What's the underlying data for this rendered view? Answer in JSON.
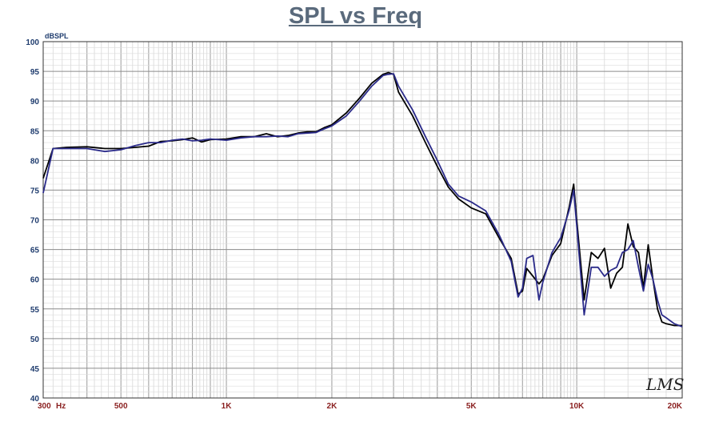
{
  "chart_data": {
    "type": "line",
    "title": "SPL vs Freq",
    "ylabel": "dBSPL",
    "xlabel": "",
    "xscale": "log",
    "xlim": [
      300,
      20000
    ],
    "ylim": [
      40,
      100
    ],
    "grid": true,
    "y_ticks": [
      40,
      45,
      50,
      55,
      60,
      65,
      70,
      75,
      80,
      85,
      90,
      95,
      100
    ],
    "x_ticks": [
      {
        "value": 300,
        "label": "300"
      },
      {
        "value": 500,
        "label": "500"
      },
      {
        "value": 1000,
        "label": "1K"
      },
      {
        "value": 2000,
        "label": "2K"
      },
      {
        "value": 5000,
        "label": "5K"
      },
      {
        "value": 10000,
        "label": "10K"
      },
      {
        "value": 20000,
        "label": "20K"
      }
    ],
    "x_unit_label": "Hz",
    "watermark": "LMS",
    "series": [
      {
        "color": "#000000",
        "x": [
          300,
          320,
          350,
          400,
          450,
          500,
          550,
          600,
          650,
          700,
          750,
          800,
          850,
          900,
          1000,
          1100,
          1200,
          1300,
          1400,
          1500,
          1600,
          1700,
          1800,
          1900,
          2000,
          2200,
          2400,
          2600,
          2800,
          2900,
          3000,
          3100,
          3400,
          3700,
          4000,
          4300,
          4600,
          5000,
          5500,
          6000,
          6500,
          6800,
          7000,
          7200,
          7500,
          7800,
          8000,
          8500,
          9000,
          9500,
          9800,
          10000,
          10500,
          11000,
          11500,
          12000,
          12500,
          13000,
          13500,
          14000,
          14500,
          15000,
          15500,
          16000,
          16500,
          17000,
          17500,
          18000,
          19000,
          20000
        ],
        "y": [
          77.0,
          82.0,
          82.2,
          82.3,
          82.0,
          82.0,
          82.2,
          82.4,
          83.2,
          83.3,
          83.5,
          83.8,
          83.1,
          83.5,
          83.6,
          84.0,
          84.0,
          84.5,
          84.0,
          84.2,
          84.6,
          84.8,
          84.8,
          85.5,
          86.0,
          88.0,
          90.5,
          93.0,
          94.5,
          94.8,
          94.5,
          91.5,
          87.5,
          83.0,
          79.0,
          75.5,
          73.5,
          72.0,
          71.0,
          67.0,
          63.5,
          57.5,
          58.0,
          61.8,
          60.5,
          59.2,
          60.0,
          64.0,
          66.0,
          72.0,
          76.0,
          70.0,
          56.5,
          64.5,
          63.5,
          65.2,
          58.5,
          61.0,
          62.0,
          69.3,
          65.5,
          64.5,
          58.5,
          65.8,
          60.0,
          55.0,
          52.8,
          52.5,
          52.2,
          52.2
        ]
      },
      {
        "color": "#2b2b8a",
        "x": [
          300,
          320,
          350,
          400,
          450,
          500,
          550,
          600,
          650,
          700,
          750,
          800,
          850,
          900,
          1000,
          1100,
          1200,
          1300,
          1400,
          1500,
          1600,
          1700,
          1800,
          1900,
          2000,
          2200,
          2400,
          2600,
          2800,
          2900,
          3000,
          3100,
          3400,
          3700,
          4000,
          4300,
          4600,
          5000,
          5500,
          6000,
          6500,
          6800,
          7000,
          7200,
          7500,
          7800,
          8000,
          8500,
          9000,
          9500,
          9800,
          10000,
          10500,
          11000,
          11500,
          12000,
          12500,
          13000,
          13500,
          14000,
          14500,
          15000,
          15500,
          16000,
          16500,
          17000,
          17500,
          18000,
          19000,
          20000
        ],
        "y": [
          74.5,
          82.0,
          82.0,
          82.0,
          81.5,
          81.8,
          82.5,
          83.0,
          83.0,
          83.4,
          83.6,
          83.3,
          83.4,
          83.6,
          83.4,
          83.8,
          84.0,
          84.0,
          84.1,
          84.0,
          84.5,
          84.6,
          84.7,
          85.3,
          85.8,
          87.5,
          90.0,
          92.5,
          94.3,
          94.5,
          94.6,
          92.5,
          88.5,
          84.0,
          80.0,
          76.0,
          74.0,
          73.0,
          71.5,
          67.5,
          63.0,
          57.0,
          58.5,
          63.5,
          64.0,
          56.5,
          59.5,
          64.5,
          67.0,
          71.5,
          75.0,
          69.0,
          54.0,
          62.0,
          62.0,
          60.5,
          61.5,
          62.0,
          64.5,
          65.0,
          66.5,
          62.0,
          58.0,
          62.5,
          60.0,
          56.5,
          54.0,
          53.5,
          52.5,
          52.0
        ]
      }
    ]
  }
}
